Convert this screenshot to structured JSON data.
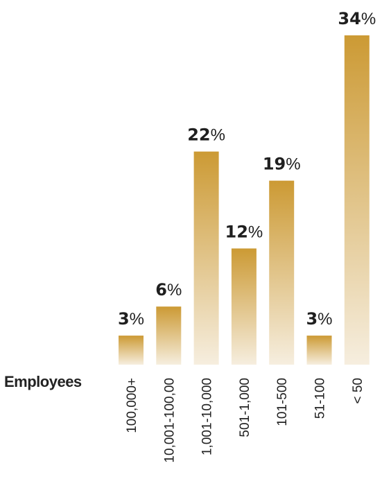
{
  "chart_data": {
    "type": "bar",
    "xlabel": "Employees",
    "ylabel": "",
    "ylim": [
      0,
      34
    ],
    "grid": false,
    "legend": "none",
    "categories": [
      "100,000+",
      "10,001-100,00",
      "1,001-10,000",
      "501-1,000",
      "101-500",
      "51-100",
      "< 50"
    ],
    "values": [
      3,
      6,
      22,
      12,
      19,
      3,
      34
    ],
    "value_labels": [
      "3%",
      "6%",
      "22%",
      "12%",
      "19%",
      "3%",
      "34%"
    ],
    "colors": {
      "bar_top": "#cc9a34",
      "bar_bottom": "#f6eedf",
      "label": "#1f1f1f"
    }
  }
}
